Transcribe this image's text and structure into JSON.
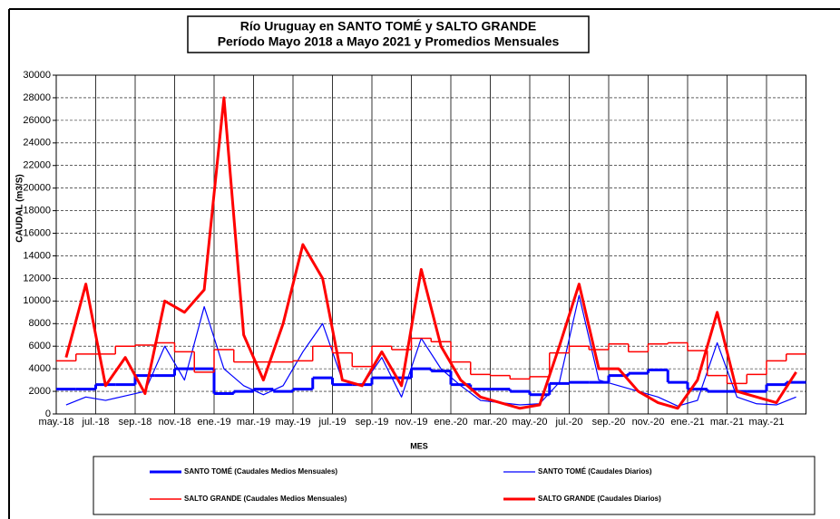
{
  "chart_data": {
    "type": "line",
    "title": "Río Uruguay en SANTO TOMÉ y SALTO GRANDE",
    "subtitle": "Período Mayo 2018 a Mayo 2021 y Promedios Mensuales",
    "y_label": "CAUDAL  (m3/S)",
    "x_label": "MES",
    "categories": [
      "may.-18",
      null,
      "jul.-18",
      null,
      "sep.-18",
      null,
      "nov.-18",
      null,
      "ene.-19",
      null,
      "mar.-19",
      null,
      "may.-19",
      null,
      "jul.-19",
      null,
      "sep.-19",
      null,
      "nov.-19",
      null,
      "ene.-20",
      null,
      "mar.-20",
      null,
      "may.-20",
      null,
      "jul.-20",
      null,
      "sep.-20",
      null,
      "nov.-20",
      null,
      "ene.-21",
      null,
      "mar.-21",
      null,
      "may.-21",
      null
    ],
    "ylim": [
      0,
      30000
    ],
    "yticks": [
      0,
      2000,
      4000,
      6000,
      8000,
      10000,
      12000,
      14000,
      16000,
      18000,
      20000,
      22000,
      24000,
      26000,
      28000,
      30000
    ],
    "grid": true,
    "series": [
      {
        "name": "SANTO TOMÉ (Caudales Medios Mensuales)",
        "color": "#0000ff",
        "line_width": 3,
        "step": true,
        "values": [
          2200,
          2200,
          2600,
          2600,
          3400,
          3400,
          4000,
          4000,
          1800,
          2000,
          2200,
          2000,
          2200,
          3200,
          2600,
          2600,
          3200,
          3200,
          4000,
          3800,
          2600,
          2200,
          2200,
          2000,
          1700,
          2700,
          2800,
          2800,
          3400,
          3600,
          3900,
          2800,
          2200,
          2000,
          2000,
          2000,
          2600,
          2800
        ]
      },
      {
        "name": "SANTO TOMÉ (Caudales Diarios)",
        "color": "#0000ff",
        "line_width": 1.2,
        "step": false,
        "values": [
          800,
          1500,
          1200,
          1600,
          2000,
          6000,
          3000,
          9500,
          4000,
          2500,
          1700,
          2500,
          5500,
          8000,
          3000,
          2500,
          5000,
          1500,
          6700,
          4000,
          2500,
          1200,
          1000,
          800,
          900,
          2800,
          10500,
          3000,
          2500,
          2000,
          1500,
          700,
          1200,
          6300,
          1500,
          900,
          800,
          1500
        ]
      },
      {
        "name": "SALTO GRANDE (Caudales Medios Mensuales)",
        "color": "#ff0000",
        "line_width": 1.5,
        "step": true,
        "values": [
          4700,
          5300,
          5300,
          6000,
          6100,
          6300,
          5500,
          3700,
          5700,
          4600,
          4600,
          4600,
          4700,
          6000,
          5400,
          4200,
          6000,
          5700,
          6700,
          6400,
          4600,
          3500,
          3400,
          3100,
          3300,
          5400,
          6000,
          5700,
          6200,
          5500,
          6200,
          6300,
          5600,
          3400,
          2700,
          3500,
          4700,
          5300
        ]
      },
      {
        "name": "SALTO GRANDE (Caudales Diarios)",
        "color": "#ff0000",
        "line_width": 3,
        "step": false,
        "values": [
          5000,
          11500,
          2500,
          5000,
          1800,
          10000,
          9000,
          11000,
          28000,
          7000,
          3000,
          8000,
          15000,
          12000,
          3000,
          2500,
          5500,
          2500,
          12800,
          6000,
          3000,
          1500,
          1000,
          500,
          800,
          6000,
          11500,
          4000,
          4000,
          2000,
          1000,
          500,
          3000,
          9000,
          2000,
          1500,
          1000,
          3700
        ]
      }
    ]
  }
}
